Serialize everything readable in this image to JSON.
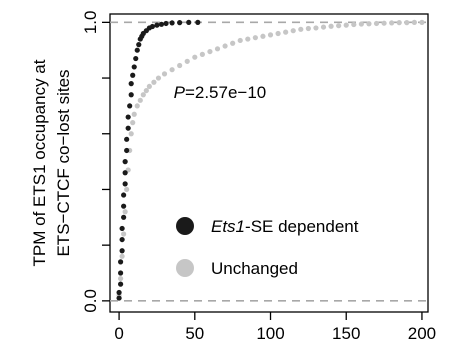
{
  "chart_data": {
    "type": "scatter",
    "ylabel_line1": "TPM of ETS1 occupancy at",
    "ylabel_line2": "ETS−CTCF co−lost sites",
    "xlabel": "",
    "xlim": [
      -6,
      204
    ],
    "ylim": [
      -0.04,
      1.03
    ],
    "x_ticks": [
      0,
      50,
      100,
      150,
      200
    ],
    "x_tick_labels": [
      "0",
      "50",
      "100",
      "150",
      "200"
    ],
    "y_ticks": [
      0.0,
      1.0
    ],
    "y_tick_labels": [
      "0.0",
      "1.0"
    ],
    "y_minor_ticks": [
      0.2,
      0.4,
      0.6,
      0.8
    ],
    "reference_lines_y": [
      0.0,
      1.0
    ],
    "annotation_p_italic": "P",
    "annotation_p_rest": "=2.57e−10",
    "annotation_p_at": [
      36,
      0.75
    ],
    "grid": false,
    "legend_placement": "bottom-center",
    "series": [
      {
        "name_italic": "Ets1",
        "name_rest": "-SE dependent",
        "color": "#1a1a1a",
        "points": [
          [
            0,
            0.01
          ],
          [
            0,
            0.03
          ],
          [
            1,
            0.06
          ],
          [
            1,
            0.1
          ],
          [
            1,
            0.14
          ],
          [
            2,
            0.18
          ],
          [
            2,
            0.22
          ],
          [
            2,
            0.26
          ],
          [
            3,
            0.3
          ],
          [
            3,
            0.34
          ],
          [
            3,
            0.38
          ],
          [
            4,
            0.42
          ],
          [
            4,
            0.46
          ],
          [
            4,
            0.5
          ],
          [
            5,
            0.54
          ],
          [
            5,
            0.58
          ],
          [
            6,
            0.62
          ],
          [
            6,
            0.66
          ],
          [
            7,
            0.7
          ],
          [
            8,
            0.74
          ],
          [
            8,
            0.78
          ],
          [
            9,
            0.81
          ],
          [
            10,
            0.84
          ],
          [
            11,
            0.87
          ],
          [
            12,
            0.9
          ],
          [
            13,
            0.92
          ],
          [
            14,
            0.94
          ],
          [
            15,
            0.95
          ],
          [
            16,
            0.96
          ],
          [
            18,
            0.97
          ],
          [
            20,
            0.98
          ],
          [
            22,
            0.985
          ],
          [
            25,
            0.99
          ],
          [
            28,
            0.993
          ],
          [
            31,
            0.996
          ],
          [
            35,
            0.998
          ],
          [
            40,
            0.999
          ],
          [
            46,
            1.0
          ],
          [
            52,
            1.0
          ]
        ]
      },
      {
        "name": "Unchanged",
        "color": "#c6c6c6",
        "points": [
          [
            0,
            0.02
          ],
          [
            1,
            0.08
          ],
          [
            2,
            0.16
          ],
          [
            3,
            0.24
          ],
          [
            4,
            0.32
          ],
          [
            5,
            0.4
          ],
          [
            6,
            0.47
          ],
          [
            7,
            0.54
          ],
          [
            8,
            0.6
          ],
          [
            9,
            0.64
          ],
          [
            10,
            0.67
          ],
          [
            12,
            0.7
          ],
          [
            14,
            0.72
          ],
          [
            16,
            0.74
          ],
          [
            18,
            0.755
          ],
          [
            20,
            0.77
          ],
          [
            23,
            0.785
          ],
          [
            26,
            0.8
          ],
          [
            30,
            0.815
          ],
          [
            35,
            0.83
          ],
          [
            40,
            0.845
          ],
          [
            45,
            0.86
          ],
          [
            50,
            0.875
          ],
          [
            55,
            0.885
          ],
          [
            60,
            0.895
          ],
          [
            65,
            0.905
          ],
          [
            70,
            0.915
          ],
          [
            75,
            0.925
          ],
          [
            80,
            0.935
          ],
          [
            85,
            0.94
          ],
          [
            90,
            0.945
          ],
          [
            95,
            0.95
          ],
          [
            100,
            0.955
          ],
          [
            105,
            0.96
          ],
          [
            110,
            0.965
          ],
          [
            115,
            0.97
          ],
          [
            120,
            0.975
          ],
          [
            125,
            0.978
          ],
          [
            130,
            0.98
          ],
          [
            135,
            0.983
          ],
          [
            140,
            0.986
          ],
          [
            145,
            0.988
          ],
          [
            150,
            0.99
          ],
          [
            155,
            0.992
          ],
          [
            160,
            0.994
          ],
          [
            165,
            0.995
          ],
          [
            170,
            0.996
          ],
          [
            175,
            0.997
          ],
          [
            180,
            0.998
          ],
          [
            185,
            0.999
          ],
          [
            190,
            0.999
          ],
          [
            195,
            1.0
          ],
          [
            200,
            1.0
          ]
        ]
      }
    ]
  }
}
